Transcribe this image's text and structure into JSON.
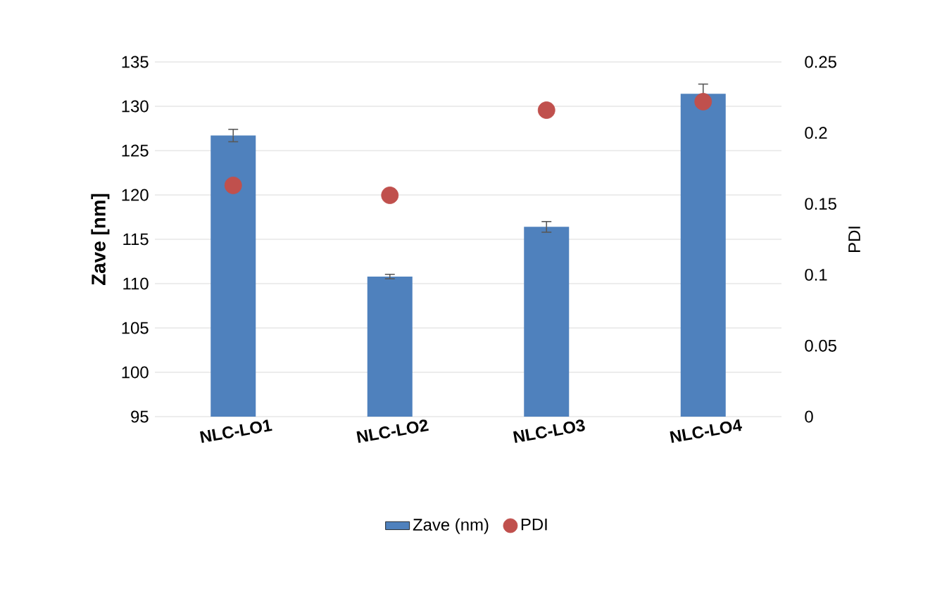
{
  "chart_data": {
    "type": "bar",
    "ylabel": "Zave [nm]",
    "y2label": "PDI",
    "categories": [
      "NLC-LO1",
      "NLC-LO2",
      "NLC-LO3",
      "NLC-LO4"
    ],
    "series": [
      {
        "name": "Zave (nm)",
        "color": "#4f81bd",
        "values": [
          126.7,
          110.8,
          116.4,
          131.4
        ],
        "errors": [
          0.7,
          0.25,
          0.6,
          1.1
        ]
      },
      {
        "name": "PDI",
        "type": "scatter",
        "axis": "y2",
        "color": "#c0504d",
        "values": [
          0.163,
          0.156,
          0.216,
          0.222
        ]
      }
    ],
    "ylim": [
      95,
      135
    ],
    "yticks": [
      95,
      100,
      105,
      110,
      115,
      120,
      125,
      130,
      135
    ],
    "y2lim": [
      0,
      0.25
    ],
    "y2ticks": [
      0,
      0.05,
      0.1,
      0.15,
      0.2,
      0.25
    ],
    "grid": "y",
    "legend": "bottom",
    "marker": "circle"
  }
}
